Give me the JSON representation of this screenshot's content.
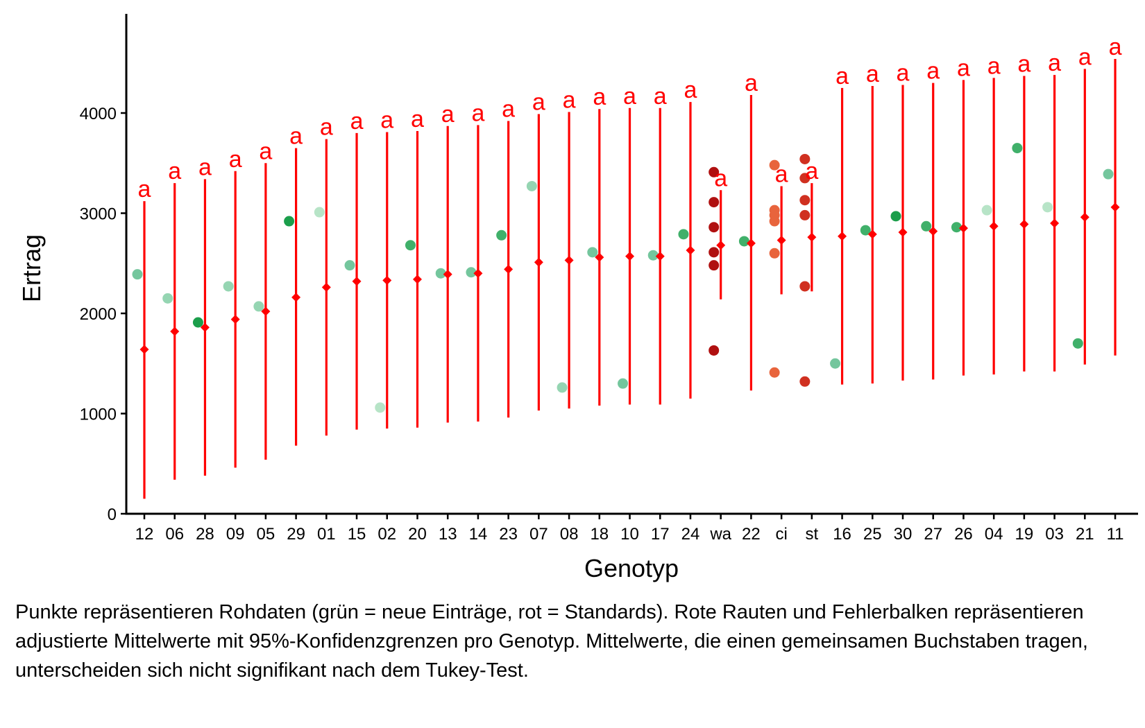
{
  "chart_data": {
    "type": "scatter",
    "xlabel": "Genotyp",
    "ylabel": "Ertrag",
    "ylim": [
      0,
      4950
    ],
    "y_ticks": [
      0,
      1000,
      2000,
      3000,
      4000
    ],
    "grid": false,
    "colors": {
      "mean": "#ff0000",
      "letters": "#ff0000"
    },
    "categories": [
      "12",
      "06",
      "28",
      "09",
      "05",
      "29",
      "01",
      "15",
      "02",
      "20",
      "13",
      "14",
      "23",
      "07",
      "08",
      "18",
      "10",
      "17",
      "24",
      "wa",
      "22",
      "ci",
      "st",
      "16",
      "25",
      "30",
      "27",
      "26",
      "04",
      "19",
      "03",
      "21",
      "11"
    ],
    "adjusted_means": {
      "mean": [
        1640,
        1820,
        1860,
        1940,
        2020,
        2160,
        2260,
        2320,
        2330,
        2340,
        2390,
        2400,
        2440,
        2510,
        2530,
        2560,
        2570,
        2570,
        2630,
        2680,
        2700,
        2730,
        2760,
        2770,
        2790,
        2810,
        2820,
        2850,
        2870,
        2890,
        2900,
        2960,
        3060
      ],
      "lower": [
        150,
        340,
        380,
        460,
        540,
        680,
        780,
        840,
        850,
        860,
        910,
        920,
        960,
        1030,
        1050,
        1080,
        1090,
        1090,
        1150,
        2140,
        1230,
        2190,
        2220,
        1290,
        1300,
        1330,
        1340,
        1380,
        1390,
        1420,
        1420,
        1490,
        1580
      ],
      "upper": [
        3120,
        3300,
        3340,
        3420,
        3500,
        3650,
        3740,
        3800,
        3810,
        3820,
        3870,
        3880,
        3920,
        3990,
        4010,
        4040,
        4050,
        4050,
        4110,
        3230,
        4180,
        3270,
        3300,
        4250,
        4270,
        4280,
        4300,
        4330,
        4350,
        4370,
        4380,
        4440,
        4540
      ],
      "letters": [
        "a",
        "a",
        "a",
        "a",
        "a",
        "a",
        "a",
        "a",
        "a",
        "a",
        "a",
        "a",
        "a",
        "a",
        "a",
        "a",
        "a",
        "a",
        "a",
        "a",
        "a",
        "a",
        "a",
        "a",
        "a",
        "a",
        "a",
        "a",
        "a",
        "a",
        "a",
        "a",
        "a"
      ]
    },
    "raw_points": [
      {
        "genotype": "12",
        "y": 2390,
        "color": "#74c69d"
      },
      {
        "genotype": "06",
        "y": 2150,
        "color": "#95d5b2"
      },
      {
        "genotype": "28",
        "y": 1910,
        "color": "#1b9e4b"
      },
      {
        "genotype": "09",
        "y": 2270,
        "color": "#95d5b2"
      },
      {
        "genotype": "05",
        "y": 2070,
        "color": "#95d5b2"
      },
      {
        "genotype": "29",
        "y": 2920,
        "color": "#1b9e4b"
      },
      {
        "genotype": "01",
        "y": 3010,
        "color": "#b7e4c7"
      },
      {
        "genotype": "15",
        "y": 2480,
        "color": "#74c69d"
      },
      {
        "genotype": "02",
        "y": 1060,
        "color": "#b7e4c7"
      },
      {
        "genotype": "20",
        "y": 2680,
        "color": "#40b06a"
      },
      {
        "genotype": "13",
        "y": 2400,
        "color": "#74c69d"
      },
      {
        "genotype": "14",
        "y": 2410,
        "color": "#74c69d"
      },
      {
        "genotype": "23",
        "y": 2780,
        "color": "#40b06a"
      },
      {
        "genotype": "07",
        "y": 3270,
        "color": "#95d5b2"
      },
      {
        "genotype": "08",
        "y": 1260,
        "color": "#95d5b2"
      },
      {
        "genotype": "18",
        "y": 2610,
        "color": "#74c69d"
      },
      {
        "genotype": "10",
        "y": 1300,
        "color": "#74c69d"
      },
      {
        "genotype": "17",
        "y": 2580,
        "color": "#74c69d"
      },
      {
        "genotype": "24",
        "y": 2790,
        "color": "#40b06a"
      },
      {
        "genotype": "wa",
        "y": 3410,
        "color": "#b01010"
      },
      {
        "genotype": "wa",
        "y": 3110,
        "color": "#b01010"
      },
      {
        "genotype": "wa",
        "y": 2860,
        "color": "#b01010"
      },
      {
        "genotype": "wa",
        "y": 2610,
        "color": "#b01010"
      },
      {
        "genotype": "wa",
        "y": 2480,
        "color": "#b01010"
      },
      {
        "genotype": "wa",
        "y": 1630,
        "color": "#b01010"
      },
      {
        "genotype": "22",
        "y": 2720,
        "color": "#40b06a"
      },
      {
        "genotype": "ci",
        "y": 3480,
        "color": "#e8643c"
      },
      {
        "genotype": "ci",
        "y": 3030,
        "color": "#e8643c"
      },
      {
        "genotype": "ci",
        "y": 2980,
        "color": "#e8643c"
      },
      {
        "genotype": "ci",
        "y": 2920,
        "color": "#e8643c"
      },
      {
        "genotype": "ci",
        "y": 2600,
        "color": "#e8643c"
      },
      {
        "genotype": "ci",
        "y": 1410,
        "color": "#e8643c"
      },
      {
        "genotype": "st",
        "y": 3540,
        "color": "#d03020"
      },
      {
        "genotype": "st",
        "y": 3350,
        "color": "#d03020"
      },
      {
        "genotype": "st",
        "y": 3130,
        "color": "#d03020"
      },
      {
        "genotype": "st",
        "y": 2980,
        "color": "#d03020"
      },
      {
        "genotype": "st",
        "y": 2270,
        "color": "#d03020"
      },
      {
        "genotype": "st",
        "y": 1320,
        "color": "#d03020"
      },
      {
        "genotype": "16",
        "y": 1500,
        "color": "#74c69d"
      },
      {
        "genotype": "25",
        "y": 2830,
        "color": "#40b06a"
      },
      {
        "genotype": "30",
        "y": 2970,
        "color": "#1b9e4b"
      },
      {
        "genotype": "27",
        "y": 2870,
        "color": "#40b06a"
      },
      {
        "genotype": "26",
        "y": 2860,
        "color": "#40b06a"
      },
      {
        "genotype": "04",
        "y": 3030,
        "color": "#b7e4c7"
      },
      {
        "genotype": "19",
        "y": 3650,
        "color": "#40b06a"
      },
      {
        "genotype": "03",
        "y": 3060,
        "color": "#b7e4c7"
      },
      {
        "genotype": "21",
        "y": 1700,
        "color": "#40b06a"
      },
      {
        "genotype": "11",
        "y": 3390,
        "color": "#74c69d"
      }
    ]
  },
  "caption": "Punkte repräsentieren Rohdaten (grün = neue Einträge, rot = Standards). Rote Rauten und Fehlerbalken repräsentieren adjustierte Mittelwerte mit 95%-Konfidenzgrenzen pro Genotyp. Mittelwerte, die einen gemeinsamen Buchstaben tragen, unterscheiden sich nicht signifikant nach dem Tukey-Test."
}
